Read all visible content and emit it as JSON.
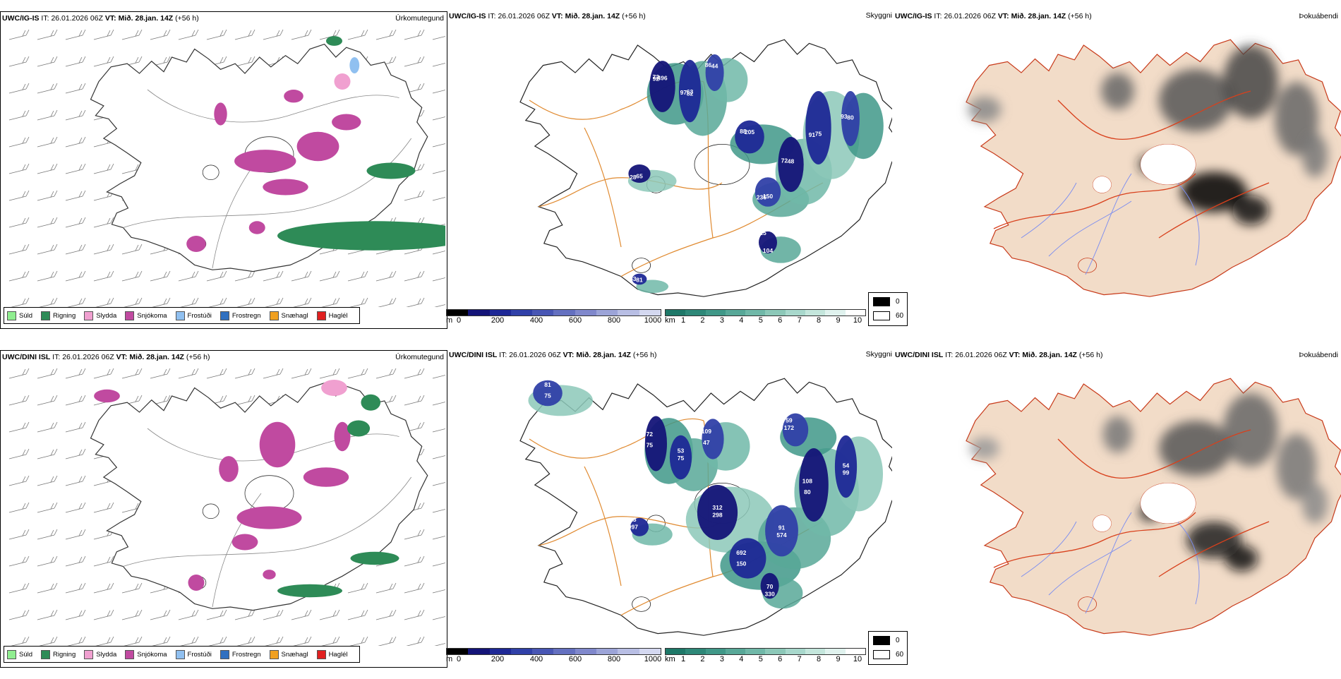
{
  "rows": [
    {
      "model": "UWC/IG-IS",
      "it_label": "IT:",
      "it_value": "26.01.2026 06Z",
      "vt_label": "VT:",
      "vt_value": "Mið. 28.jan. 14Z",
      "lead": "(+56 h)",
      "p1_right": "Úrkomutegund",
      "p2_right": "Skyggni",
      "p3_right": "Þokuábendi"
    },
    {
      "model": "UWC/DINI ISL",
      "it_label": "IT:",
      "it_value": "26.01.2026 06Z",
      "vt_label": "VT:",
      "vt_value": "Mið. 28.jan. 14Z",
      "lead": "(+56 h)",
      "p1_right": "Úrkomutegund",
      "p2_right": "Skyggni",
      "p3_right": "Þokuábendi"
    }
  ],
  "precip_legend": [
    {
      "label": "Súld",
      "color": "#90ee90"
    },
    {
      "label": "Rigning",
      "color": "#2e8b57"
    },
    {
      "label": "Slydda",
      "color": "#f0a0d0"
    },
    {
      "label": "Snjókoma",
      "color": "#c04aa0"
    },
    {
      "label": "Frostúði",
      "color": "#90c0f0"
    },
    {
      "label": "Frostregn",
      "color": "#3070c0"
    },
    {
      "label": "Snæhagl",
      "color": "#f0a020"
    },
    {
      "label": "Haglél",
      "color": "#e02020"
    }
  ],
  "vis_m": {
    "unit": "m",
    "ticks": [
      "0",
      "200",
      "400",
      "600",
      "800",
      "1000"
    ],
    "colors": [
      "#000000",
      "#141478",
      "#1e2896",
      "#3040a8",
      "#4856b4",
      "#6470c0",
      "#8088cc",
      "#9ca4d8",
      "#b8bee4",
      "#d4d8f0"
    ]
  },
  "vis_km": {
    "unit": "km",
    "ticks": [
      "1",
      "2",
      "3",
      "4",
      "5",
      "6",
      "7",
      "8",
      "9",
      "10"
    ],
    "colors": [
      "#1e7868",
      "#2e8878",
      "#409888",
      "#58a898",
      "#70b8a8",
      "#8cc8b8",
      "#a8d8cc",
      "#c4e6dc",
      "#e0f2ee",
      "#ffffff"
    ]
  },
  "fog_legend": {
    "low": "0",
    "high": "60"
  },
  "vis_labels_top": [
    "72",
    "63",
    "86",
    "65",
    "88",
    "150",
    "72",
    "75",
    "93",
    "104",
    "83",
    "496",
    "97",
    "44",
    "28",
    "205",
    "236",
    "48",
    "91",
    "80",
    "115",
    "81",
    "92",
    "82"
  ],
  "vis_labels_bottom": [
    "72",
    "75",
    "109",
    "298",
    "692",
    "574",
    "108",
    "99",
    "172",
    "330",
    "997",
    "81",
    "75",
    "53",
    "47",
    "312",
    "150",
    "91",
    "80",
    "54",
    "59",
    "70",
    "13",
    "75"
  ]
}
